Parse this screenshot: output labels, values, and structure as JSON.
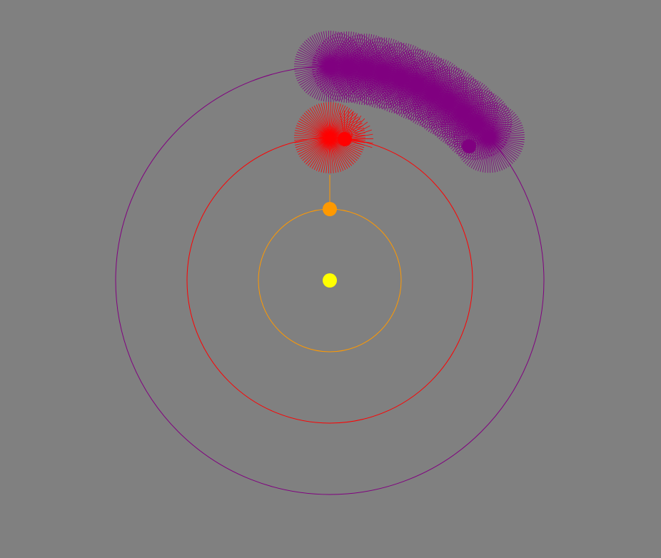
{
  "colors": {
    "background": "#808080",
    "sun": "#ffff00",
    "inner_planet": "#ff9900",
    "middle_planet": "#ff0000",
    "outer_planet": "#800080"
  },
  "bodies": [
    {
      "name": "sun",
      "color": "#ffff00"
    },
    {
      "name": "inner-planet",
      "color": "#ff9900",
      "orbit_color": "#ff9900"
    },
    {
      "name": "middle-planet",
      "color": "#ff0000",
      "orbit_color": "#ff0000"
    },
    {
      "name": "outer-planet",
      "color": "#800080",
      "orbit_color": "#800080"
    }
  ]
}
